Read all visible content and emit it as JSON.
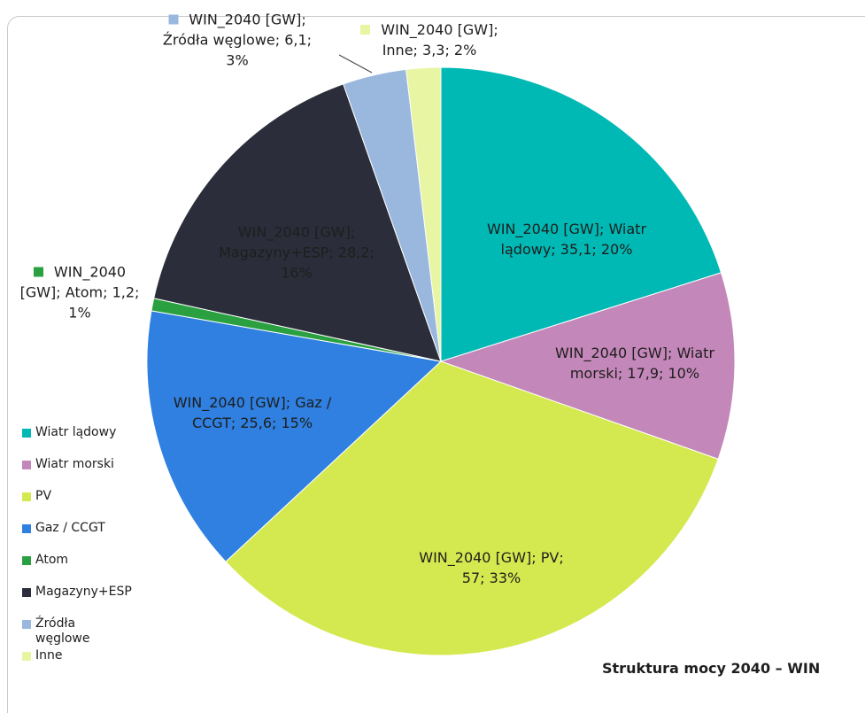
{
  "chart_data": {
    "type": "pie",
    "title": "Struktura mocy 2040 – WIN",
    "series_name": "WIN_2040 [GW]",
    "categories": [
      "Wiatr lądowy",
      "Wiatr morski",
      "PV",
      "Gaz / CCGT",
      "Atom",
      "Magazyny+ESP",
      "Źródła węglowe",
      "Inne"
    ],
    "values": [
      35.1,
      17.9,
      57,
      25.6,
      1.2,
      28.2,
      6.1,
      3.3
    ],
    "value_labels": [
      "WIN_2040 [GW]; Wiatr lądowy; 35,1; 20%",
      "WIN_2040 [GW]; Wiatr morski; 17,9; 10%",
      "WIN_2040 [GW]; PV; 57; 33%",
      "WIN_2040 [GW]; Gaz / CCGT; 25,6; 15%",
      "WIN_2040 [GW]; Atom; 1,2; 1%",
      "WIN_2040 [GW]; Magazyny+ESP; 28,2; 16%",
      "WIN_2040 [GW]; Źródła węglowe; 6,1; 3%",
      "WIN_2040 [GW]; Inne; 3,3; 2%"
    ],
    "colors": [
      "#00b9b4",
      "#c487b9",
      "#d4e94f",
      "#2f80e0",
      "#2aa040",
      "#2b2e3a",
      "#9ab8de",
      "#e8f5a3"
    ],
    "legend": "left"
  }
}
